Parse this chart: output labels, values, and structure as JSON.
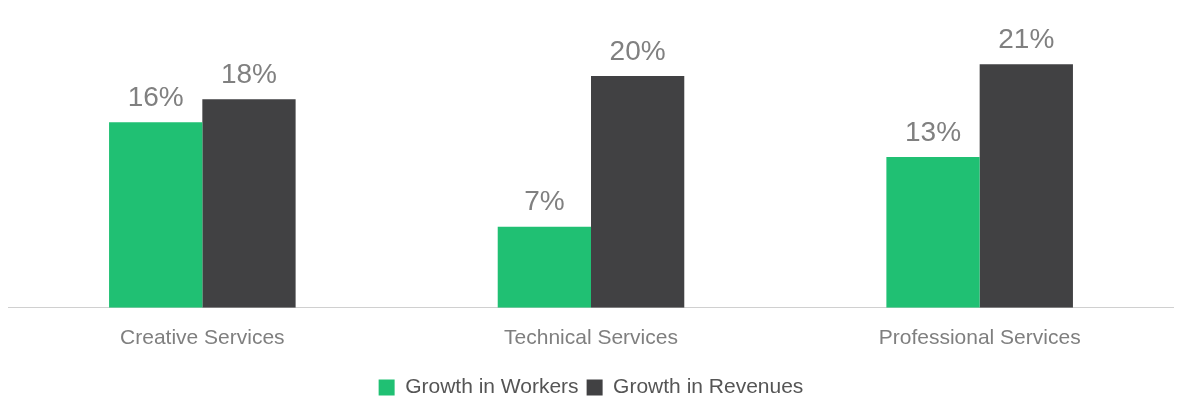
{
  "chart_data": {
    "type": "bar",
    "categories": [
      "Creative Services",
      "Technical Services",
      "Professional Services"
    ],
    "series": [
      {
        "name": "Growth in Workers",
        "color": "#20c073",
        "values": [
          16,
          7,
          13
        ],
        "value_labels": [
          "16%",
          "7%",
          "13%"
        ]
      },
      {
        "name": "Growth in Revenues",
        "color": "#414143",
        "values": [
          18,
          20,
          21
        ],
        "value_labels": [
          "18%",
          "20%",
          "21%"
        ]
      }
    ],
    "grid": false,
    "legend": "bottom"
  }
}
